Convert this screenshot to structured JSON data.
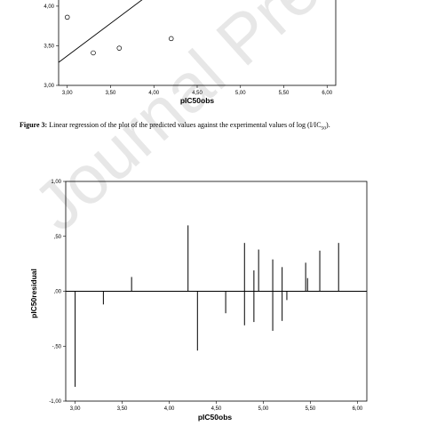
{
  "caption": {
    "label": "Figure 3:",
    "text": "Linear regression of the plot of the predicted values against the experimental values of log (I/IC",
    "sub": "50",
    "end": ")."
  },
  "watermark": "Journal Pre-proofs",
  "chart_data": [
    {
      "type": "scatter",
      "xlabel": "pIC50obs",
      "ylabel": "",
      "xlim": [
        2.9,
        6.1
      ],
      "ylim": [
        3.0,
        4.1
      ],
      "x_ticks": [
        "3,00",
        "3,50",
        "4,00",
        "4,50",
        "5,00",
        "5,50",
        "6,00"
      ],
      "y_ticks": [
        "3,00",
        "3,50",
        "4,00"
      ],
      "points": [
        {
          "x": 3.0,
          "y": 3.86
        },
        {
          "x": 3.3,
          "y": 3.41
        },
        {
          "x": 3.6,
          "y": 3.47
        },
        {
          "x": 4.2,
          "y": 3.59
        }
      ],
      "fit_line": [
        {
          "x": 2.9,
          "y": 3.29
        },
        {
          "x": 3.9,
          "y": 4.11
        }
      ],
      "grid": false
    },
    {
      "type": "bar",
      "xlabel": "pIC50obs",
      "ylabel": "pIC50residual",
      "xlim": [
        2.9,
        6.1
      ],
      "ylim": [
        -1.0,
        1.0
      ],
      "x_ticks": [
        "3,00",
        "3,50",
        "4,00",
        "4,50",
        "5,00",
        "5,50",
        "6,00"
      ],
      "y_ticks": [
        "1,00",
        ",50",
        ",00",
        "-,50",
        "-1,00"
      ],
      "reference_line": 0,
      "points": [
        {
          "x": 3.0,
          "y": -0.87
        },
        {
          "x": 3.3,
          "y": -0.12
        },
        {
          "x": 3.6,
          "y": 0.13
        },
        {
          "x": 4.2,
          "y": 0.6
        },
        {
          "x": 4.3,
          "y": -0.54
        },
        {
          "x": 4.6,
          "y": -0.2
        },
        {
          "x": 4.8,
          "y": 0.44
        },
        {
          "x": 4.8,
          "y": -0.31
        },
        {
          "x": 4.9,
          "y": 0.19
        },
        {
          "x": 4.9,
          "y": -0.28
        },
        {
          "x": 4.95,
          "y": 0.38
        },
        {
          "x": 5.1,
          "y": 0.29
        },
        {
          "x": 5.1,
          "y": -0.36
        },
        {
          "x": 5.2,
          "y": 0.22
        },
        {
          "x": 5.2,
          "y": -0.27
        },
        {
          "x": 5.25,
          "y": -0.08
        },
        {
          "x": 5.45,
          "y": 0.26
        },
        {
          "x": 5.47,
          "y": 0.12
        },
        {
          "x": 5.6,
          "y": 0.37
        },
        {
          "x": 5.8,
          "y": 0.44
        }
      ],
      "grid": false
    }
  ]
}
